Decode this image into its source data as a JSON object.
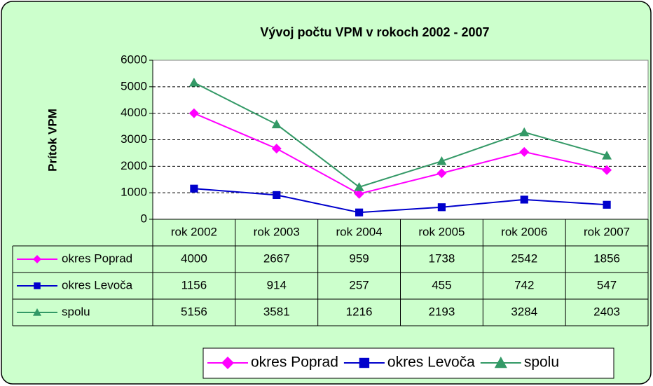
{
  "chart_data": {
    "type": "line",
    "title": "Vývoj počtu VPM v rokoch 2002 - 2007",
    "y_label": "Prítok VPM",
    "categories": [
      "rok 2002",
      "rok 2003",
      "rok 2004",
      "rok 2005",
      "rok 2006",
      "rok 2007"
    ],
    "series": [
      {
        "name": "okres Poprad",
        "color": "#ff00ff",
        "marker": "diamond",
        "values": [
          4000,
          2667,
          959,
          1738,
          2542,
          1856
        ]
      },
      {
        "name": "okres Levoča",
        "color": "#0000cc",
        "marker": "square",
        "values": [
          1156,
          914,
          257,
          455,
          742,
          547
        ]
      },
      {
        "name": "spolu",
        "color": "#339966",
        "marker": "triangle",
        "values": [
          5156,
          3581,
          1216,
          2193,
          3284,
          2403
        ]
      }
    ],
    "ylim": [
      0,
      6000
    ],
    "yticks": [
      0,
      1000,
      2000,
      3000,
      4000,
      5000,
      6000
    ],
    "grid": true,
    "legend": "bottom"
  }
}
